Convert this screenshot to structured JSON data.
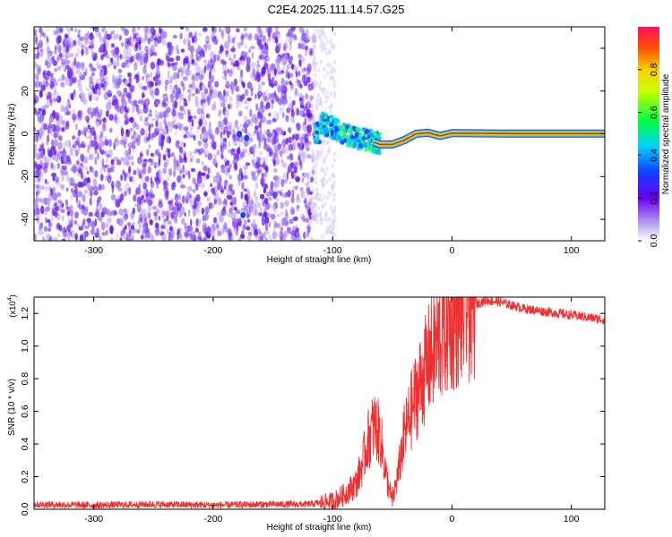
{
  "figure_title": "C2E4.2025.111.14.57.G25",
  "chart_data": [
    {
      "type": "heatmap",
      "panel": "top",
      "xlabel": "Height of straight line (km)",
      "ylabel": "Frequency (Hz)",
      "xlim": [
        -350,
        128
      ],
      "ylim": [
        -50,
        50
      ],
      "x_ticks": [
        -300,
        -200,
        -100,
        0,
        100
      ],
      "y_ticks": [
        -40,
        -20,
        0,
        20,
        40
      ],
      "colorbar": {
        "label": "Normalized spectral amplitude",
        "range": [
          0,
          1
        ],
        "ticks": [
          "0.0",
          "0.2",
          "0.4",
          "0.6",
          "0.8"
        ]
      },
      "ridge": {
        "description_x_km": [
          -110,
          -100,
          -90,
          -80,
          -70,
          -60,
          -50,
          -40,
          -30,
          -20,
          -10,
          0,
          25,
          50,
          75,
          100,
          128
        ],
        "frequency_hz": [
          5,
          3,
          0,
          -2,
          -3,
          -5,
          -5,
          -3,
          0,
          0.5,
          -1,
          0.3,
          0.2,
          0.1,
          0.1,
          0.1,
          0.1
        ]
      },
      "noise_region_x_km": [
        -350,
        -120
      ]
    },
    {
      "type": "line",
      "panel": "bottom",
      "xlabel": "Height of straight line (km)",
      "ylabel": "SNR (10 * v/v)",
      "y_multiplier": "(x10",
      "y_multiplier_exp": "4",
      "y_multiplier_close": ")",
      "xlim": [
        -350,
        128
      ],
      "ylim": [
        0,
        13000
      ],
      "x_ticks": [
        -300,
        -200,
        -100,
        0,
        100
      ],
      "y_ticks": [
        "0.0",
        "0.2",
        "0.4",
        "0.6",
        "0.8",
        "1.0",
        "1.2"
      ],
      "series": [
        {
          "name": "SNR",
          "color": "#f03030",
          "x": [
            -350,
            -300,
            -250,
            -200,
            -150,
            -120,
            -100,
            -90,
            -80,
            -75,
            -70,
            -65,
            -60,
            -58,
            -55,
            -50,
            -45,
            -40,
            -35,
            -30,
            -25,
            -20,
            -15,
            -10,
            -5,
            0,
            10,
            20,
            30,
            40,
            50,
            60,
            70,
            80,
            90,
            100,
            110,
            120,
            128
          ],
          "y": [
            300,
            250,
            300,
            250,
            300,
            300,
            500,
            900,
            1600,
            2800,
            4300,
            5200,
            4500,
            3500,
            2000,
            500,
            2200,
            4500,
            5800,
            7000,
            8000,
            9000,
            9800,
            10500,
            11000,
            11500,
            12100,
            12600,
            12800,
            12700,
            12500,
            12300,
            12200,
            12100,
            12000,
            11900,
            11800,
            11700,
            11600
          ]
        }
      ]
    }
  ],
  "colors": {
    "line": "#f03030",
    "noise": "#6a1fe8",
    "ridge_core": "#e02010",
    "ridge_mid": "#ffd000",
    "ridge_outer": "#20c8ff"
  }
}
